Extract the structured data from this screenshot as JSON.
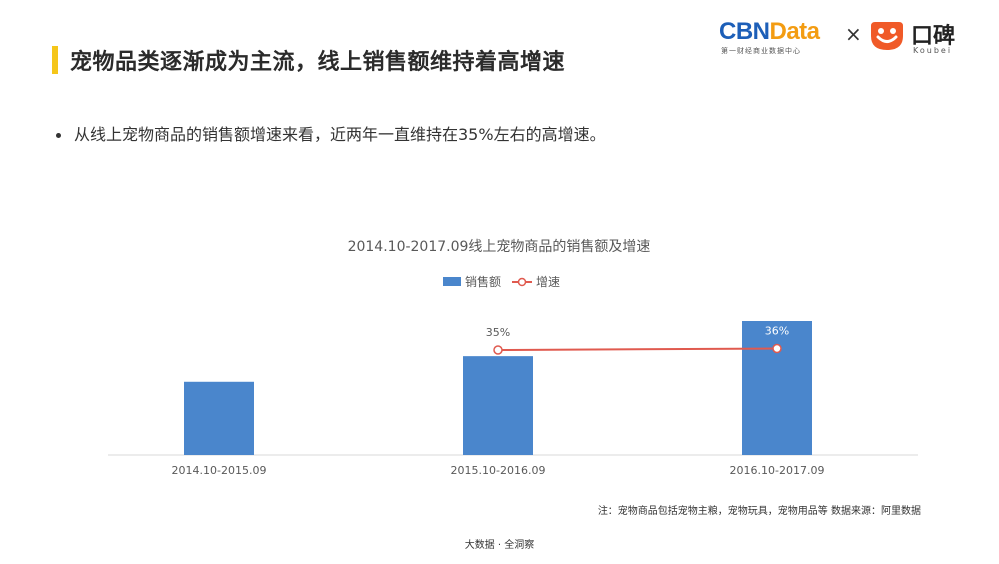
{
  "header": {
    "title": "宠物品类逐渐成为主流，线上销售额维持着高增速",
    "accent_color": "#f5c61a"
  },
  "logos": {
    "cbn_main_a": "CBN",
    "cbn_main_b": "Data",
    "cbn_sub": "第一财经商业数据中心",
    "times": "×",
    "koubei_name": "口碑",
    "koubei_sub": "Koubei",
    "koubei_color": "#f05a28",
    "koubei_icon": "koubei-smile-icon"
  },
  "bullet": {
    "text": "从线上宠物商品的销售额增速来看，近两年一直维持在35%左右的高增速。"
  },
  "chart_data": {
    "type": "bar",
    "title": "2014.10-2017.09线上宠物商品的销售额及增速",
    "categories": [
      "2014.10-2015.09",
      "2015.10-2016.09",
      "2016.10-2017.09"
    ],
    "series": [
      {
        "name": "销售额",
        "type": "bar",
        "values": [
          1.0,
          1.35,
          1.83
        ],
        "color": "#4a86cc"
      },
      {
        "name": "增速",
        "type": "line",
        "values": [
          null,
          35,
          36
        ],
        "labels": [
          null,
          "35%",
          "36%"
        ],
        "color": "#e05a4f"
      }
    ],
    "legend_position": "top-center",
    "grid": false
  },
  "note": "注：宠物商品包括宠物主粮，宠物玩具，宠物用品等   数据来源：阿里数据",
  "footer": "大数据 · 全洞察"
}
